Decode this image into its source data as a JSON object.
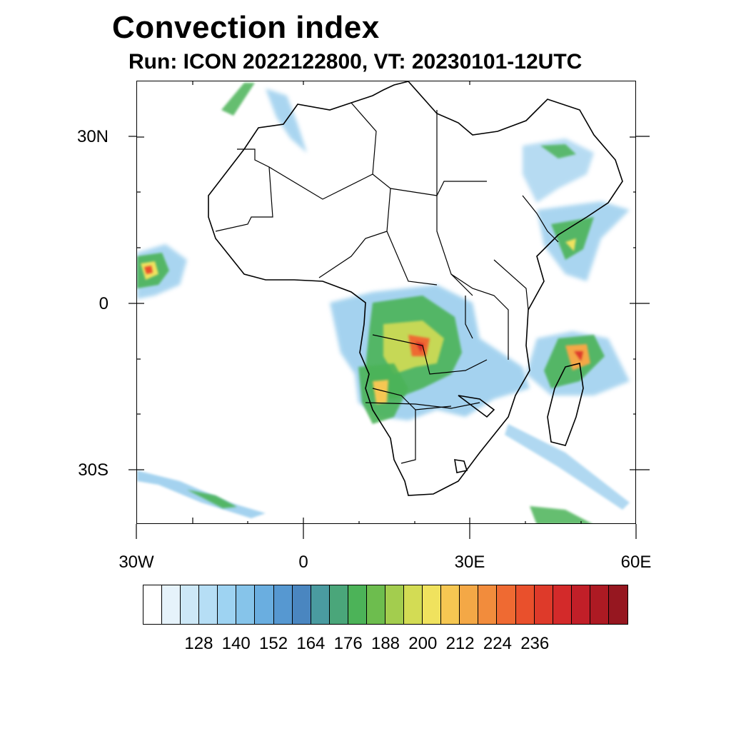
{
  "title": "Convection index",
  "subtitle": "Run: ICON 2022122800,  VT: 20230101-12UTC",
  "map": {
    "projection": "cylindrical equidistant",
    "lon_range": [
      -30,
      60
    ],
    "lat_range": [
      -40,
      40
    ],
    "lat_labels": [
      "30N",
      "0",
      "30S"
    ],
    "lon_labels": [
      "30W",
      "0",
      "30E",
      "60E"
    ],
    "land_fill": "#ffffff",
    "border_color": "#000000"
  },
  "colorbar": {
    "labels": [
      "128",
      "140",
      "152",
      "164",
      "176",
      "188",
      "200",
      "212",
      "224",
      "236"
    ],
    "colors": [
      "#ffffff",
      "#e6f3fb",
      "#cde8f7",
      "#b6def5",
      "#9ed3f2",
      "#86c4ea",
      "#6aaee0",
      "#5698d1",
      "#4a86c0",
      "#4a9ba0",
      "#4aa67a",
      "#4cb358",
      "#6dbd4e",
      "#a3cd4e",
      "#d3dc54",
      "#f0e25e",
      "#f6c752",
      "#f4a846",
      "#f28c3c",
      "#ef6a32",
      "#e9502c",
      "#de3a2a",
      "#d32a2a",
      "#c11f28",
      "#ad1a23",
      "#961720"
    ]
  }
}
